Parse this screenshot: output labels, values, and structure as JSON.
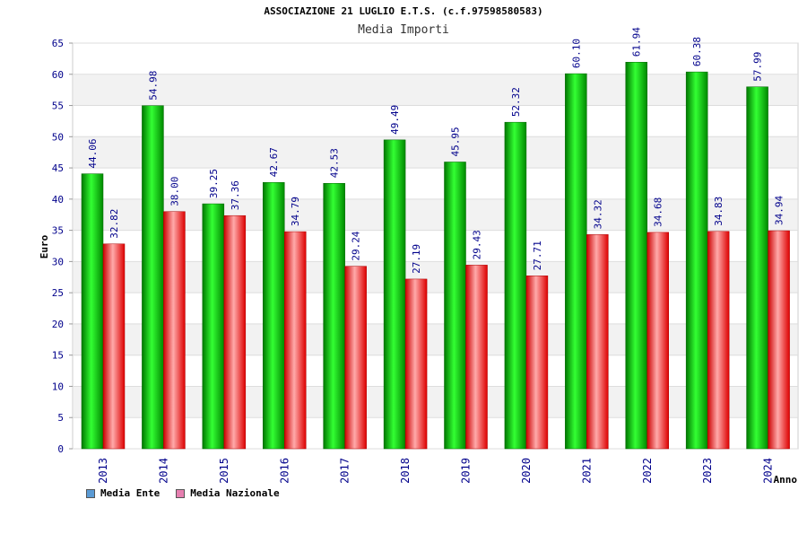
{
  "chart_data": {
    "type": "bar",
    "title": "ASSOCIAZIONE 21 LUGLIO E.T.S. (c.f.97598580583)",
    "subtitle": "Media Importi",
    "xlabel": "Anno",
    "ylabel": "Euro",
    "ylim": [
      0,
      65
    ],
    "yticks": [
      0,
      5,
      10,
      15,
      20,
      25,
      30,
      35,
      40,
      45,
      50,
      55,
      60,
      65
    ],
    "grid": "horizontal bands",
    "legend_position": "bottom-left",
    "categories": [
      "2013",
      "2014",
      "2015",
      "2016",
      "2017",
      "2018",
      "2019",
      "2020",
      "2021",
      "2022",
      "2023",
      "2024"
    ],
    "series": [
      {
        "name": "Media Ente",
        "color": "#00aa00",
        "legend_color": "#5b9bd5",
        "values": [
          44.06,
          54.98,
          39.25,
          42.67,
          42.53,
          49.49,
          45.95,
          52.32,
          60.1,
          61.94,
          60.38,
          57.99
        ],
        "labels": [
          "44.06",
          "54.98",
          "39.25",
          "42.67",
          "42.53",
          "49.49",
          "45.95",
          "52.32",
          "60.10",
          "61.94",
          "60.38",
          "57.99"
        ]
      },
      {
        "name": "Media Nazionale",
        "color": "#ee0000",
        "legend_color": "#e67fb0",
        "values": [
          32.82,
          38.0,
          37.36,
          34.79,
          29.24,
          27.19,
          29.43,
          27.71,
          34.32,
          34.68,
          34.83,
          34.94
        ],
        "labels": [
          "32.82",
          "38.00",
          "37.36",
          "34.79",
          "29.24",
          "27.19",
          "29.43",
          "27.71",
          "34.32",
          "34.68",
          "34.83",
          "34.94"
        ]
      }
    ]
  }
}
